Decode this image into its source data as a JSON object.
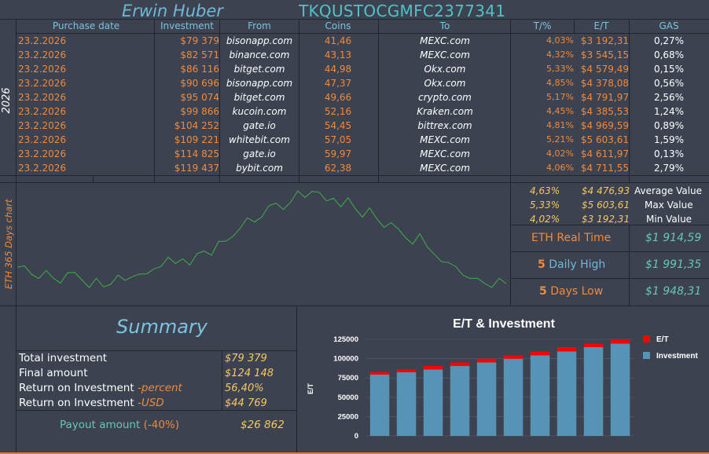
{
  "header": {
    "name": "Erwin Huber",
    "code": "TKQUSTOCGMFC2377341",
    "year": "2026"
  },
  "columns": {
    "date": "Purchase date",
    "investment": "Investment",
    "from": "From",
    "coins": "Coins",
    "to": "To",
    "tpct": "T/%",
    "et": "E/T",
    "gas": "GAS"
  },
  "rows": [
    {
      "date": "23.2.2026",
      "investment": "$79 379",
      "from": "bisonapp.com",
      "coins": "41,46",
      "to": "MEXC.com",
      "tpct": "4,03%",
      "et": "$3 192,31",
      "gas": "0,27%"
    },
    {
      "date": "23.2.2026",
      "investment": "$82 571",
      "from": "binance.com",
      "coins": "43,13",
      "to": "MEXC.com",
      "tpct": "4,32%",
      "et": "$3 545,15",
      "gas": "0,68%"
    },
    {
      "date": "23.2.2026",
      "investment": "$86 116",
      "from": "bitget.com",
      "coins": "44,98",
      "to": "Okx.com",
      "tpct": "5,33%",
      "et": "$4 579,49",
      "gas": "0,15%"
    },
    {
      "date": "23.2.2026",
      "investment": "$90 696",
      "from": "bisonapp.com",
      "coins": "47,37",
      "to": "Okx.com",
      "tpct": "4,85%",
      "et": "$4 378,08",
      "gas": "0,56%"
    },
    {
      "date": "23.2.2026",
      "investment": "$95 074",
      "from": "bitget.com",
      "coins": "49,66",
      "to": "crypto.com",
      "tpct": "5,17%",
      "et": "$4 791,97",
      "gas": "2,56%"
    },
    {
      "date": "23.2.2026",
      "investment": "$99 866",
      "from": "kucoin.com",
      "coins": "52,16",
      "to": "Kraken.com",
      "tpct": "4,45%",
      "et": "$4 385,53",
      "gas": "1,24%"
    },
    {
      "date": "23.2.2026",
      "investment": "$104 252",
      "from": "gate.io",
      "coins": "54,45",
      "to": "bittrex.com",
      "tpct": "4,81%",
      "et": "$4 969,59",
      "gas": "0,89%"
    },
    {
      "date": "23.2.2026",
      "investment": "$109 221",
      "from": "whitebit.com",
      "coins": "57,05",
      "to": "MEXC.com",
      "tpct": "5,21%",
      "et": "$5 603,61",
      "gas": "1,59%"
    },
    {
      "date": "23.2.2026",
      "investment": "$114 825",
      "from": "gate.io",
      "coins": "59,97",
      "to": "MEXC.com",
      "tpct": "4,02%",
      "et": "$4 611,97",
      "gas": "0,13%"
    },
    {
      "date": "23.2.2026",
      "investment": "$119 437",
      "from": "bybit.com",
      "coins": "62,38",
      "to": "MEXC.com",
      "tpct": "4,06%",
      "et": "$4 711,55",
      "gas": "2,79%"
    }
  ],
  "eth_chart_label": "ETH 365 Days chart",
  "stats": [
    {
      "pct": "4,63%",
      "val": "$4 476,93",
      "label": "Average Value"
    },
    {
      "pct": "5,33%",
      "val": "$5 603,61",
      "label": "Max Value"
    },
    {
      "pct": "4,02%",
      "val": "$3 192,31",
      "label": "Min Value"
    }
  ],
  "realtime": {
    "label": "ETH Real Time",
    "value": "$1 914,59"
  },
  "daily_high": {
    "num": "5",
    "label": "Daily High",
    "value": "$1 991,35"
  },
  "days_low": {
    "num": "5",
    "label": "Days Low",
    "value": "$1 948,31"
  },
  "summary": {
    "title": "Summary",
    "rows": [
      {
        "label": "Total investment",
        "suffix": "",
        "value": "$79 379"
      },
      {
        "label": "Final amount",
        "suffix": "",
        "value": "$124 148"
      },
      {
        "label": "Return on Investment",
        "suffix": "-percent",
        "value": "56,40%"
      },
      {
        "label": "Return on Investment",
        "suffix": "-USD",
        "value": "$44 769"
      }
    ],
    "payout_label": "Payout amount",
    "payout_pct": "(-40%)",
    "payout_value": "$26 862"
  },
  "colors": {
    "line": "#3fae4a",
    "bar": "#5693b4",
    "cap": "#ff0000"
  },
  "chart_data": {
    "type": "bar",
    "title": "E/T & Investment",
    "ylabel": "E/T",
    "ylim": [
      0,
      125000
    ],
    "yticks": [
      "0",
      "25000",
      "50000",
      "75000",
      "100000",
      "125000"
    ],
    "series": [
      {
        "name": "E/T",
        "values": [
          3192,
          3545,
          4579,
          4378,
          4792,
          4386,
          4970,
          5604,
          4612,
          4712
        ]
      },
      {
        "name": "Investment",
        "values": [
          79379,
          82571,
          86116,
          90696,
          95074,
          99866,
          104252,
          109221,
          114825,
          119437
        ]
      }
    ]
  }
}
